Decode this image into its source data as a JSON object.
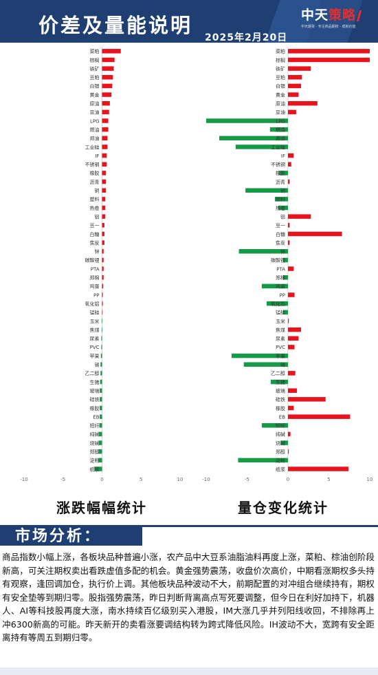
{
  "header": {
    "title": "价差及量能说明",
    "date": "2025年2月20日",
    "logo_main_1": "中天",
    "logo_main_2": "策略",
    "logo_sub": "中天期货 · 专注商品期权 · 成就价值"
  },
  "captions": {
    "left": "涨跌幅幅统计",
    "right": "量仓变化统计"
  },
  "section": {
    "title": "市场分析："
  },
  "analysis": "商品指数小幅上涨，各板块品种普遍小涨，农产品中大豆系油脂油料再度上涨，菜粕、棕油创阶段新高，可关注期权卖出看跌虚值多配的机会。黄金强势震荡，收盘价次高价，中期看涨期权多头持有观察，逢回调加仓，执行价上调。其他板块品种波动不大，前期配置的对冲组合继续持有，期权有安全垫等到期归零。股指强势震荡，昨日判断背离高点写死要调整，但今日在利好加持下，机器人、AI等科技股再度大涨，南水持续百亿级别买入港股，IM大涨几乎并列阳线收回，不排除再上冲6300新高的可能。昨天新开的卖看涨要调结构转为跨式降低风险。IH波动不大，宽跨有安全距离持有等周五到期归零。",
  "colors": {
    "up": "#e8141d",
    "down": "#159a48",
    "header": "#1f3f73"
  },
  "chart_data": [
    {
      "type": "bar",
      "orientation": "horizontal",
      "title": "",
      "caption": "涨跌幅幅统计",
      "xlim": [
        -10,
        10
      ],
      "x_ticks": [
        -10,
        -5,
        0,
        5,
        10
      ],
      "grid": false,
      "categories": [
        "菜粕",
        "棕榈",
        "铁矿",
        "豆粕",
        "白银",
        "黄金",
        "原油",
        "豆油",
        "LPG",
        "燃油",
        "郑油",
        "工业硅",
        "IF",
        "不锈钢",
        "橡胶",
        "沥青",
        "铜",
        "塑料",
        "热卷",
        "铝",
        "豆一",
        "白糖",
        "焦炭",
        "锌",
        "碳酸锂",
        "PTA",
        "郑棉",
        "鸡蛋",
        "PP",
        "氧化铝",
        "锰硅",
        "玉米",
        "焦煤",
        "尿素",
        "PVC",
        "苹果",
        "锡",
        "乙二醇",
        "生猪",
        "玻璃",
        "硅铁",
        "橡胶",
        "EB",
        "短纤",
        "纯碱",
        "烧碱",
        "郑醇",
        "淀粉",
        "纸浆"
      ],
      "values": [
        2.4,
        1.6,
        1.5,
        1.4,
        1.3,
        1.2,
        1.0,
        0.9,
        0.8,
        0.8,
        0.7,
        0.7,
        0.6,
        0.6,
        0.5,
        0.5,
        0.5,
        0.4,
        0.4,
        0.4,
        0.3,
        0.3,
        0.3,
        0.2,
        0.2,
        0.2,
        0.2,
        0.15,
        0.1,
        0.1,
        0.05,
        -0.05,
        -0.05,
        -0.1,
        -0.1,
        -0.15,
        -0.2,
        -0.2,
        -0.25,
        -0.3,
        -0.3,
        -0.3,
        -0.3,
        -0.35,
        -0.4,
        -0.4,
        -0.45,
        -0.5,
        -1.0
      ]
    },
    {
      "type": "bar",
      "orientation": "horizontal",
      "title": "",
      "caption": "量仓变化统计",
      "xlim": [
        -10,
        10
      ],
      "x_ticks": [
        -10,
        -5,
        0,
        5,
        10
      ],
      "grid": false,
      "categories": [
        "菜粕",
        "棕榈",
        "铁矿",
        "豆粕",
        "白银",
        "黄金",
        "原油",
        "豆油",
        "LPG",
        "燃油",
        "郑油",
        "工业硅",
        "IF",
        "不锈钢",
        "橡胶",
        "沥青",
        "铜",
        "塑料",
        "热卷",
        "铝",
        "豆一",
        "白糖",
        "焦炭",
        "锌",
        "碳酸锂",
        "PTA",
        "郑棉",
        "鸡蛋",
        "PP",
        "氧化铝",
        "锰硅",
        "玉米",
        "焦煤",
        "尿素",
        "PVC",
        "苹果",
        "锡",
        "乙二醇",
        "生猪",
        "玻璃",
        "硅铁",
        "橡胶",
        "EB",
        "短纤",
        "纯碱",
        "烧碱",
        "郑醇",
        "淀粉",
        "纸浆"
      ],
      "values": [
        10,
        10,
        2.8,
        1.7,
        1.6,
        1.3,
        3.6,
        1.0,
        -10,
        -2.2,
        -8.4,
        -6.4,
        0.7,
        0.4,
        -1.1,
        0.2,
        -5.2,
        -1.6,
        -1.2,
        2.8,
        0.2,
        6.6,
        0.2,
        -6.0,
        -0.6,
        0.7,
        -0.6,
        -3.2,
        0.8,
        -2.6,
        -0.6,
        0.1,
        1.6,
        1.3,
        0.8,
        -6.9,
        -5.4,
        0.9,
        -2.1,
        1.1,
        4.6,
        0.7,
        7.6,
        -3.2,
        0.3,
        -0.9,
        0.1,
        -6.1,
        7.4
      ]
    }
  ]
}
